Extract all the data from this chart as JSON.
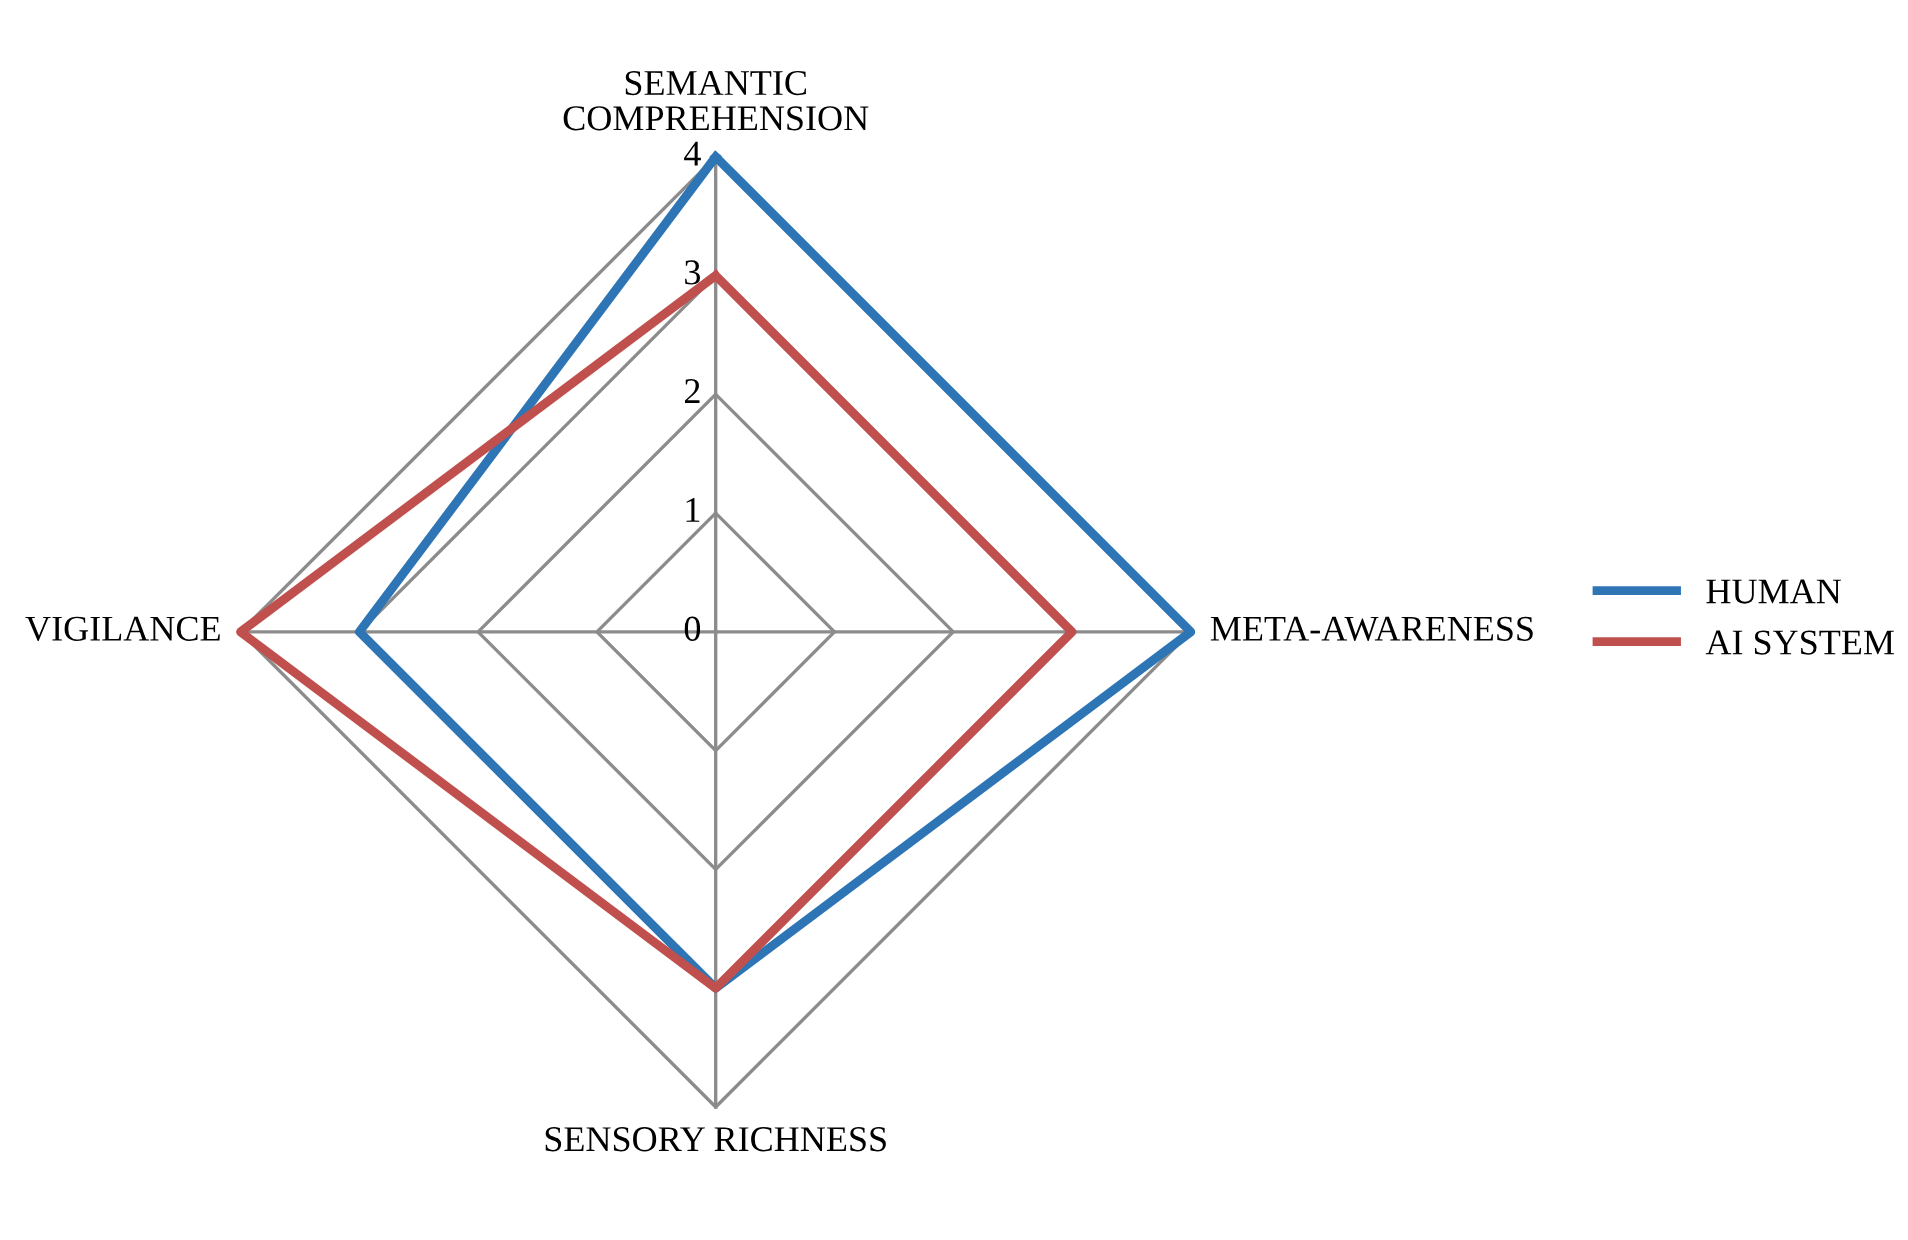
{
  "chart_data": {
    "type": "radar",
    "categories": [
      "SEMANTIC\nCOMPREHENSION",
      "META-AWARENESS",
      "SENSORY RICHNESS",
      "VIGILANCE"
    ],
    "series": [
      {
        "name": "HUMAN",
        "color": "#2e75b6",
        "values": [
          4,
          4,
          3,
          3
        ]
      },
      {
        "name": "AI SYSTEM",
        "color": "#c0504d",
        "values": [
          3,
          3,
          3,
          4
        ]
      }
    ],
    "ylim": [
      0,
      4
    ],
    "yticks": [
      0,
      1,
      2,
      3,
      4
    ],
    "grid": true,
    "legend": "right",
    "marker": "none",
    "line_style": "solid"
  }
}
